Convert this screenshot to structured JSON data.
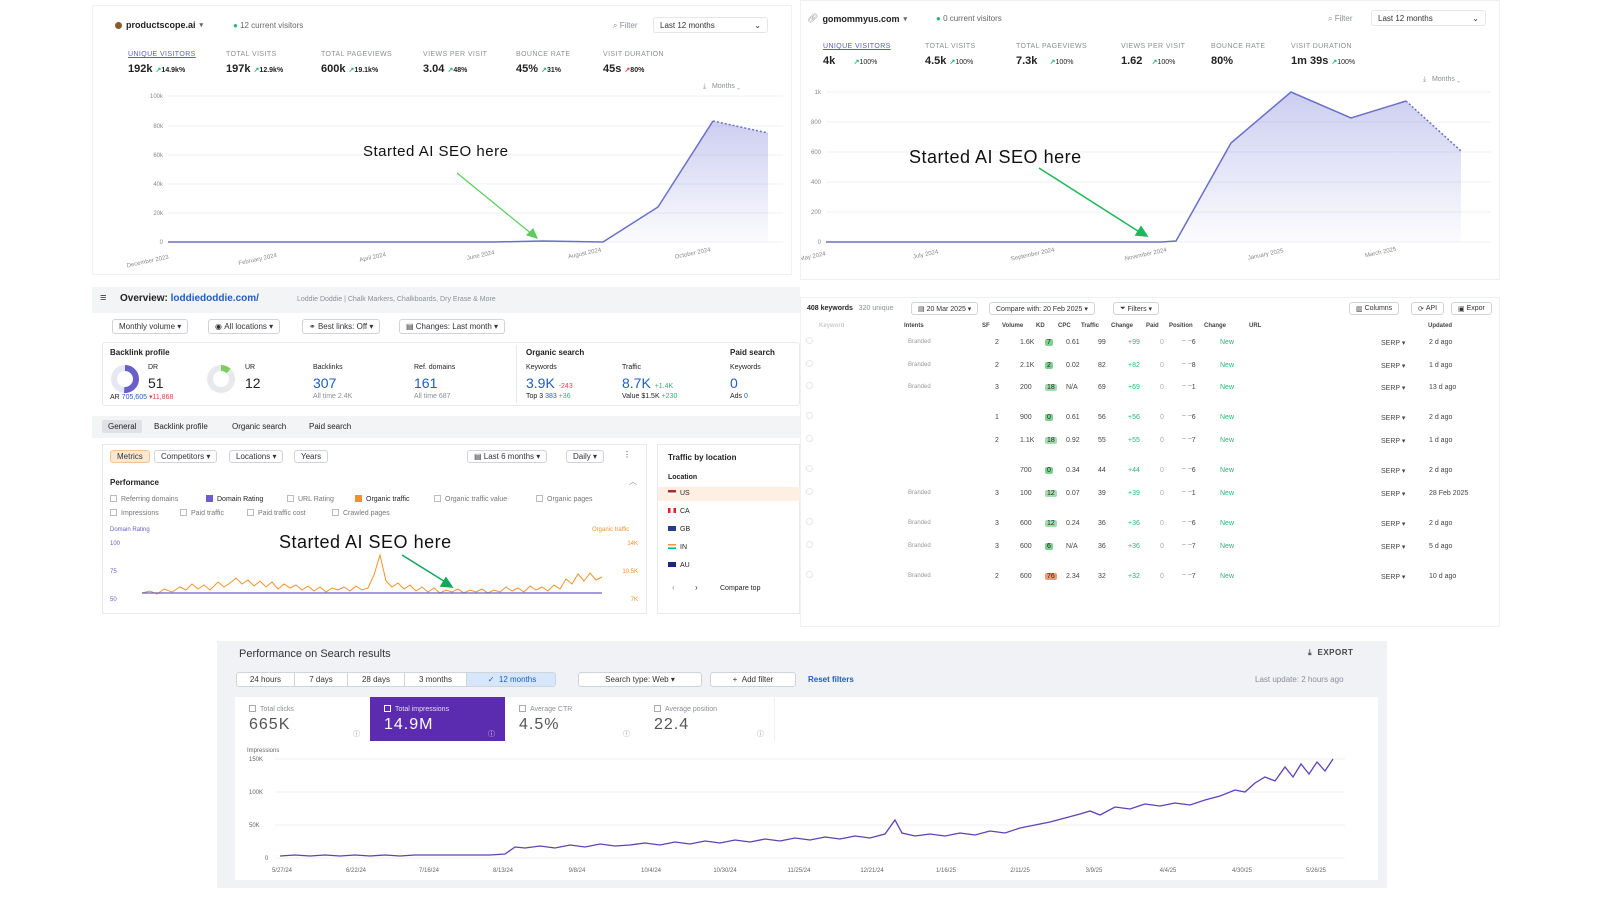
{
  "top_left": {
    "site": "productscope.ai",
    "visitors": "12 current visitors",
    "filter": "Filter",
    "period": "Last 12 months",
    "metrics": [
      {
        "label": "UNIQUE VISITORS",
        "value": "192k",
        "change": "14.9k%"
      },
      {
        "label": "TOTAL VISITS",
        "value": "197k",
        "change": "12.9k%"
      },
      {
        "label": "TOTAL PAGEVIEWS",
        "value": "600k",
        "change": "19.1k%"
      },
      {
        "label": "VIEWS PER VISIT",
        "value": "3.04",
        "change": "48%"
      },
      {
        "label": "BOUNCE RATE",
        "value": "45%",
        "change": "31%"
      },
      {
        "label": "VISIT DURATION",
        "value": "45s",
        "change": "80%"
      }
    ],
    "interval": "Months",
    "y_ticks": [
      "100k",
      "80k",
      "60k",
      "40k",
      "20k",
      "0"
    ],
    "x_ticks": [
      "December 2023",
      "February 2024",
      "April 2024",
      "June 2024",
      "August 2024",
      "October 2024"
    ],
    "annotation": "Started AI SEO here"
  },
  "top_right": {
    "site": "gomommyus.com",
    "visitors": "0 current visitors",
    "filter": "Filter",
    "period": "Last 12 months",
    "metrics": [
      {
        "label": "UNIQUE VISITORS",
        "value": "4k",
        "change": "100%"
      },
      {
        "label": "TOTAL VISITS",
        "value": "4.5k",
        "change": "100%"
      },
      {
        "label": "TOTAL PAGEVIEWS",
        "value": "7.3k",
        "change": "100%"
      },
      {
        "label": "VIEWS PER VISIT",
        "value": "1.62",
        "change": "100%"
      },
      {
        "label": "BOUNCE RATE",
        "value": "80%",
        "change": ""
      },
      {
        "label": "VISIT DURATION",
        "value": "1m 39s",
        "change": "100%"
      }
    ],
    "interval": "Months",
    "y_ticks": [
      "1k",
      "800",
      "600",
      "400",
      "200",
      "0"
    ],
    "x_ticks": [
      "May 2024",
      "July 2024",
      "September 2024",
      "November 2024",
      "January 2025",
      "March 2025"
    ],
    "annotation": "Started AI SEO here"
  },
  "ahrefs": {
    "overview_label": "Overview:",
    "domain": "loddiedoddie.com/",
    "site_desc": "Loddie Doddie | Chalk Markers, Chalkboards, Dry Erase & More",
    "controls": [
      "Monthly volume ▾",
      "All locations ▾",
      "Best links: Off ▾",
      "Changes: Last month ▾"
    ],
    "backlink_profile": "Backlink profile",
    "organic_search": "Organic search",
    "paid_search": "Paid search",
    "dr_label": "DR",
    "dr_value": "51",
    "ur_label": "UR",
    "ur_value": "12",
    "ar_label": "AR",
    "ar_value": "705,605",
    "ar_change": "▾11,868",
    "backlinks_label": "Backlinks",
    "backlinks_value": "307",
    "backlinks_sub": "All time 2.4K",
    "refdomains_label": "Ref. domains",
    "refdomains_value": "161",
    "refdomains_sub": "All time 687",
    "keywords_label": "Keywords",
    "keywords_value": "3.9K",
    "keywords_change": "-243",
    "keywords_sub1": "Top 3",
    "keywords_sub2": "383",
    "keywords_sub3": "+36",
    "traffic_label": "Traffic",
    "traffic_value": "8.7K",
    "traffic_change": "+1.4K",
    "traffic_sub1": "Value $1.5K",
    "traffic_sub2": "+230",
    "paid_keywords_label": "Keywords",
    "paid_keywords_value": "0",
    "ads_label": "Ads",
    "ads_value": "0",
    "tabs": [
      "General",
      "Backlink profile",
      "Organic search",
      "Paid search"
    ],
    "subtabs": [
      "Metrics",
      "Competitors ▾",
      "Locations ▾",
      "Years"
    ],
    "range": "Last 6 months ▾",
    "granularity": "Daily ▾",
    "performance": "Performance",
    "checks": [
      {
        "label": "Referring domains",
        "checked": false
      },
      {
        "label": "Domain Rating",
        "checked": true
      },
      {
        "label": "URL Rating",
        "checked": false
      },
      {
        "label": "Organic traffic",
        "checked": true
      },
      {
        "label": "Organic traffic value",
        "checked": false
      },
      {
        "label": "Organic pages",
        "checked": false
      },
      {
        "label": "Impressions",
        "checked": false
      },
      {
        "label": "Paid traffic",
        "checked": false
      },
      {
        "label": "Paid traffic cost",
        "checked": false
      },
      {
        "label": "Crawled pages",
        "checked": false
      }
    ],
    "left_axis_title": "Domain Rating",
    "right_axis_title": "Organic traffic",
    "left_ticks": [
      "100",
      "75",
      "50"
    ],
    "right_ticks": [
      "14K",
      "10.5K",
      "7K"
    ],
    "annotation": "Started AI SEO here",
    "location_title": "Traffic by location",
    "location_header": "Location",
    "locations": [
      "US",
      "CA",
      "GB",
      "IN",
      "AU"
    ],
    "compare": "Compare top"
  },
  "keywords_table": {
    "count": "408 keywords",
    "unique": "320 unique",
    "date": "20 Mar 2025 ▾",
    "compare": "Compare with: 20 Feb 2025 ▾",
    "filters": "Filters ▾",
    "columns_btn": "Columns",
    "api_btn": "API",
    "export_btn": "Expor",
    "headers": [
      "Keyword",
      "Intents",
      "SF",
      "Volume",
      "KD",
      "CPC",
      "Traffic",
      "Change",
      "Paid",
      "Position",
      "Change",
      "URL",
      "Updated"
    ],
    "rows": [
      {
        "intent": "Branded",
        "sf": "2",
        "volume": "1.6K",
        "kd": "7",
        "cpc": "0.61",
        "traffic": "99",
        "change": "+99",
        "paid": "0",
        "position": "6",
        "pchange": "New",
        "serp": "SERP ▾",
        "updated": "2 d ago"
      },
      {
        "intent": "Branded",
        "sf": "2",
        "volume": "2.1K",
        "kd": "2",
        "cpc": "0.02",
        "traffic": "82",
        "change": "+82",
        "paid": "0",
        "position": "8",
        "pchange": "New",
        "serp": "SERP ▾",
        "updated": "1 d ago"
      },
      {
        "intent": "Branded",
        "sf": "3",
        "volume": "200",
        "kd": "18",
        "cpc": "N/A",
        "traffic": "69",
        "change": "+69",
        "paid": "0",
        "position": "1",
        "pchange": "New",
        "serp": "SERP ▾",
        "updated": "13 d ago"
      },
      {
        "intent": "",
        "sf": "1",
        "volume": "900",
        "kd": "0",
        "cpc": "0.61",
        "traffic": "56",
        "change": "+56",
        "paid": "0",
        "position": "6",
        "pchange": "New",
        "serp": "SERP ▾",
        "updated": "2 d ago"
      },
      {
        "intent": "",
        "sf": "2",
        "volume": "1.1K",
        "kd": "18",
        "cpc": "0.92",
        "traffic": "55",
        "change": "+55",
        "paid": "0",
        "position": "7",
        "pchange": "New",
        "serp": "SERP ▾",
        "updated": "1 d ago"
      },
      {
        "intent": "",
        "sf": "",
        "volume": "700",
        "kd": "0",
        "cpc": "0.34",
        "traffic": "44",
        "change": "+44",
        "paid": "0",
        "position": "6",
        "pchange": "New",
        "serp": "SERP ▾",
        "updated": "2 d ago"
      },
      {
        "intent": "Branded",
        "sf": "3",
        "volume": "100",
        "kd": "12",
        "cpc": "0.07",
        "traffic": "39",
        "change": "+39",
        "paid": "0",
        "position": "1",
        "pchange": "New",
        "serp": "SERP ▾",
        "updated": "28 Feb 2025"
      },
      {
        "intent": "Branded",
        "sf": "3",
        "volume": "600",
        "kd": "12",
        "cpc": "0.24",
        "traffic": "36",
        "change": "+36",
        "paid": "0",
        "position": "6",
        "pchange": "New",
        "serp": "SERP ▾",
        "updated": "2 d ago"
      },
      {
        "intent": "Branded",
        "sf": "3",
        "volume": "600",
        "kd": "6",
        "cpc": "N/A",
        "traffic": "36",
        "change": "+36",
        "paid": "0",
        "position": "7",
        "pchange": "New",
        "serp": "SERP ▾",
        "updated": "5 d ago"
      },
      {
        "intent": "Branded",
        "sf": "2",
        "volume": "600",
        "kd": "76",
        "cpc": "2.34",
        "traffic": "32",
        "change": "+32",
        "paid": "0",
        "position": "7",
        "pchange": "New",
        "serp": "SERP ▾",
        "updated": "10 d ago"
      }
    ]
  },
  "gsc": {
    "title": "Performance on Search results",
    "export": "EXPORT",
    "ranges": [
      "24 hours",
      "7 days",
      "28 days",
      "3 months",
      "12 months"
    ],
    "search_type": "Search type: Web ▾",
    "add_filter": "Add filter",
    "reset": "Reset filters",
    "last_update": "Last update: 2 hours ago",
    "cards": [
      {
        "label": "Total clicks",
        "value": "665K"
      },
      {
        "label": "Total impressions",
        "value": "14.9M"
      },
      {
        "label": "Average CTR",
        "value": "4.5%"
      },
      {
        "label": "Average position",
        "value": "22.4"
      }
    ],
    "y_title": "Impressions",
    "y_ticks": [
      "150K",
      "100K",
      "50K",
      "0"
    ],
    "x_ticks": [
      "5/27/24",
      "6/22/24",
      "7/16/24",
      "8/13/24",
      "9/8/24",
      "10/4/24",
      "10/30/24",
      "11/25/24",
      "12/21/24",
      "1/16/25",
      "2/11/25",
      "3/9/25",
      "4/4/25",
      "4/30/25",
      "5/26/25"
    ]
  },
  "colors": {
    "accent_purple": "#6b2fb3",
    "line_blue": "#6a6fc9",
    "orange": "#f0922b",
    "green": "#2bb673",
    "red": "#e0424d",
    "link_blue": "#1f5ebd"
  }
}
